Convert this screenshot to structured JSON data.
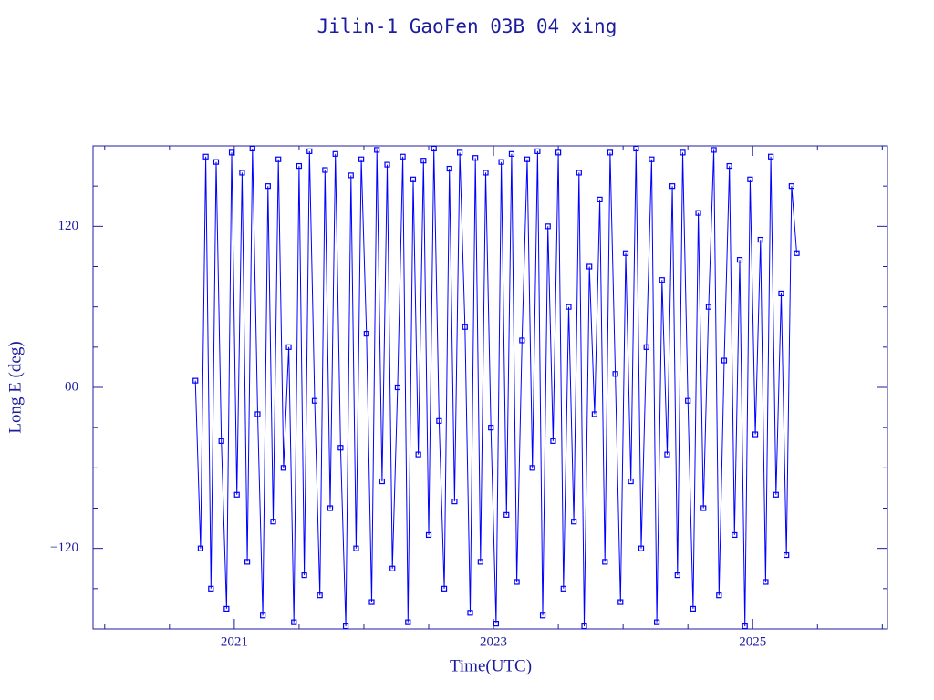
{
  "chart_data": {
    "type": "line",
    "title": "Jilin-1 GaoFen 03B 04 xing",
    "xlabel": "Time(UTC)",
    "ylabel": "Long E (deg)",
    "xlim": [
      2019.91,
      2026.04
    ],
    "xticks": [
      2021,
      2023,
      2025
    ],
    "xminorticks": [
      2020,
      2020.5,
      2021.5,
      2022,
      2022.5,
      2023.5,
      2024,
      2024.5,
      2025.5,
      2026
    ],
    "ylim": [
      -180,
      180
    ],
    "yticks": [
      120,
      {
        "value": 0,
        "label": "00"
      },
      {
        "value": -120,
        "label": "−120"
      }
    ],
    "yminorticks": [
      150,
      90,
      60,
      30,
      -30,
      -60,
      -90,
      -150
    ],
    "grid": false,
    "series": [
      {
        "name": "Long E",
        "color": "#0000ff",
        "x": [
          2020.7,
          2020.74,
          2020.78,
          2020.82,
          2020.86,
          2020.9,
          2020.94,
          2020.98,
          2021.02,
          2021.06,
          2021.1,
          2021.14,
          2021.18,
          2021.22,
          2021.26,
          2021.3,
          2021.34,
          2021.38,
          2021.42,
          2021.46,
          2021.5,
          2021.54,
          2021.58,
          2021.62,
          2021.66,
          2021.7,
          2021.74,
          2021.78,
          2021.82,
          2021.86,
          2021.9,
          2021.94,
          2021.98,
          2022.02,
          2022.06,
          2022.1,
          2022.14,
          2022.18,
          2022.22,
          2022.26,
          2022.3,
          2022.34,
          2022.38,
          2022.42,
          2022.46,
          2022.5,
          2022.54,
          2022.58,
          2022.62,
          2022.66,
          2022.7,
          2022.74,
          2022.78,
          2022.82,
          2022.86,
          2022.9,
          2022.94,
          2022.98,
          2023.02,
          2023.06,
          2023.1,
          2023.14,
          2023.18,
          2023.22,
          2023.26,
          2023.3,
          2023.34,
          2023.38,
          2023.42,
          2023.46,
          2023.5,
          2023.54,
          2023.58,
          2023.62,
          2023.66,
          2023.7,
          2023.74,
          2023.78,
          2023.82,
          2023.86,
          2023.9,
          2023.94,
          2023.98,
          2024.02,
          2024.06,
          2024.1,
          2024.14,
          2024.18,
          2024.22,
          2024.26,
          2024.3,
          2024.34,
          2024.38,
          2024.42,
          2024.46,
          2024.5,
          2024.54,
          2024.58,
          2024.62,
          2024.66,
          2024.7,
          2024.74,
          2024.78,
          2024.82,
          2024.86,
          2024.9,
          2024.94,
          2024.98,
          2025.02,
          2025.06,
          2025.1,
          2025.14,
          2025.18,
          2025.22,
          2025.26,
          2025.3,
          2025.34
        ],
        "values": [
          5,
          -120,
          172,
          -150,
          168,
          -40,
          -165,
          175,
          -80,
          160,
          -130,
          178,
          -20,
          -170,
          150,
          -100,
          170,
          -60,
          30,
          -175,
          165,
          -140,
          176,
          -10,
          -155,
          162,
          -90,
          174,
          -45,
          -178,
          158,
          -120,
          170,
          40,
          -160,
          177,
          -70,
          166,
          -135,
          0,
          172,
          -175,
          155,
          -50,
          169,
          -110,
          178,
          -25,
          -150,
          163,
          -85,
          175,
          45,
          -168,
          171,
          -130,
          160,
          -30,
          -176,
          168,
          -95,
          174,
          -145,
          35,
          170,
          -60,
          176,
          -170,
          120,
          -40,
          175,
          -150,
          60,
          -100,
          160,
          -178,
          90,
          -20,
          140,
          -130,
          175,
          10,
          -160,
          100,
          -70,
          178,
          -120,
          30,
          170,
          -175,
          80,
          -50,
          150,
          -140,
          175,
          -10,
          -165,
          130,
          -90,
          60,
          177,
          -155,
          20,
          165,
          -110,
          95,
          -178,
          155,
          -35,
          110,
          -145,
          172,
          -80,
          70,
          -125,
          150,
          100
        ]
      }
    ]
  }
}
